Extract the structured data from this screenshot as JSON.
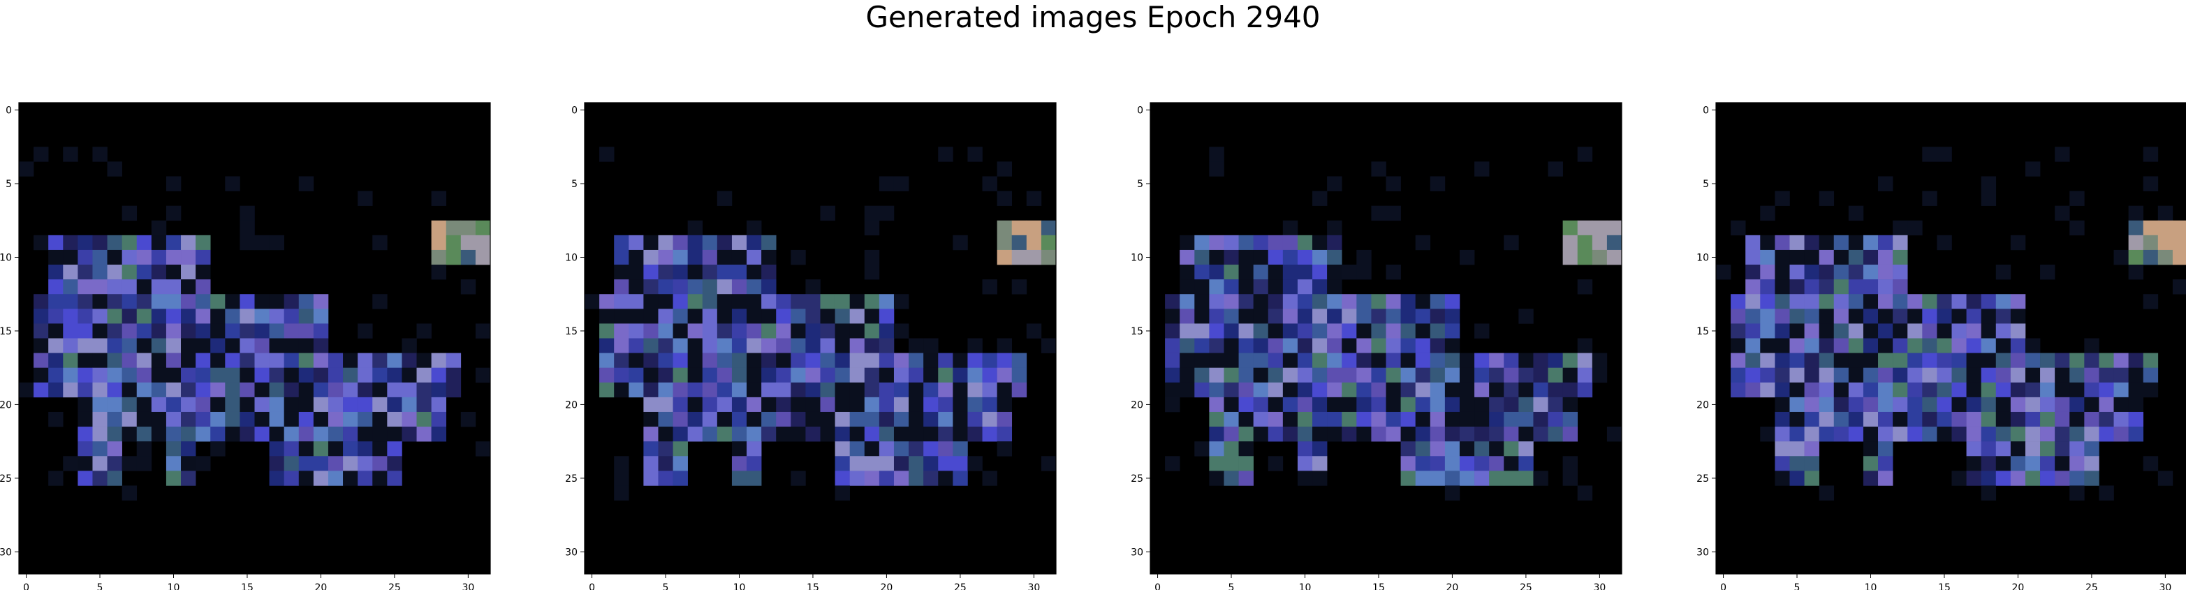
{
  "title": "Generated images Epoch 2940",
  "chart_data": [
    {
      "type": "heatmap",
      "x_ticks": [
        0,
        5,
        10,
        15,
        20,
        25,
        30
      ],
      "y_ticks": [
        0,
        5,
        10,
        15,
        20,
        25,
        30
      ],
      "xlim": [
        -0.5,
        31.5
      ],
      "ylim": [
        31.5,
        -0.5
      ],
      "grid": false
    },
    {
      "type": "heatmap",
      "x_ticks": [
        0,
        5,
        10,
        15,
        20,
        25,
        30
      ],
      "y_ticks": [
        0,
        5,
        10,
        15,
        20,
        25,
        30
      ],
      "xlim": [
        -0.5,
        31.5
      ],
      "ylim": [
        31.5,
        -0.5
      ],
      "grid": false
    },
    {
      "type": "heatmap",
      "x_ticks": [
        0,
        5,
        10,
        15,
        20,
        25,
        30
      ],
      "y_ticks": [
        0,
        5,
        10,
        15,
        20,
        25,
        30
      ],
      "xlim": [
        -0.5,
        31.5
      ],
      "ylim": [
        31.5,
        -0.5
      ],
      "grid": false
    },
    {
      "type": "heatmap",
      "x_ticks": [
        0,
        5,
        10,
        15,
        20,
        25,
        30
      ],
      "y_ticks": [
        0,
        5,
        10,
        15,
        20,
        25,
        30
      ],
      "xlim": [
        -0.5,
        31.5
      ],
      "ylim": [
        31.5,
        -0.5
      ],
      "grid": false
    }
  ],
  "colors": {
    "background": "#000000",
    "axis": "#000000"
  }
}
